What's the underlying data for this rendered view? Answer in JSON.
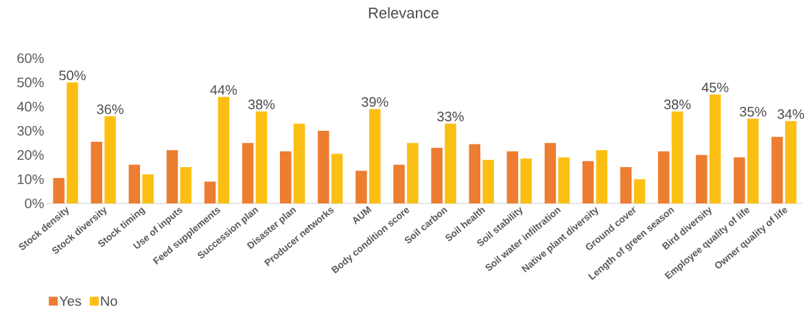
{
  "chart_data": {
    "type": "bar",
    "title": "Relevance",
    "categories": [
      "Stock density",
      "Stock diversity",
      "Stock timing",
      "Use of inputs",
      "Feed supplements",
      "Succession plan",
      "Disaster plan",
      "Producer networks",
      "AUM",
      "Body condition score",
      "Soil carbon",
      "Soil health",
      "Soil stability",
      "Soil water infiltration",
      "Native plant diversity",
      "Ground cover",
      "Length of green season",
      "Bird diversity",
      "Employee quality of life",
      "Owner quality of life"
    ],
    "series": [
      {
        "name": "Yes",
        "color": "#ed7d31",
        "values": [
          10.5,
          25.5,
          16,
          22,
          9,
          25,
          21.5,
          30,
          13.5,
          16,
          23,
          24.5,
          21.5,
          25,
          17.5,
          15,
          21.5,
          20,
          19,
          27.5
        ]
      },
      {
        "name": "No",
        "color": "#fbbf14",
        "values": [
          50,
          36,
          12,
          15,
          44,
          38,
          33,
          20.5,
          39,
          25,
          33,
          18,
          18.5,
          19,
          22,
          10,
          38,
          45,
          35,
          34
        ],
        "value_labels": [
          "50%",
          "36%",
          null,
          null,
          "44%",
          "38%",
          null,
          null,
          "39%",
          null,
          "33%",
          null,
          null,
          null,
          null,
          null,
          "38%",
          "45%",
          "35%",
          "34%"
        ]
      }
    ],
    "ylim": [
      0,
      60
    ],
    "yticks": [
      {
        "value": 0,
        "label": "0%"
      },
      {
        "value": 10,
        "label": "10%"
      },
      {
        "value": 20,
        "label": "20%"
      },
      {
        "value": 30,
        "label": "30%"
      },
      {
        "value": 40,
        "label": "40%"
      },
      {
        "value": 50,
        "label": "50%"
      },
      {
        "value": 60,
        "label": "60%"
      }
    ],
    "grid": false,
    "legend": "bottom left"
  }
}
